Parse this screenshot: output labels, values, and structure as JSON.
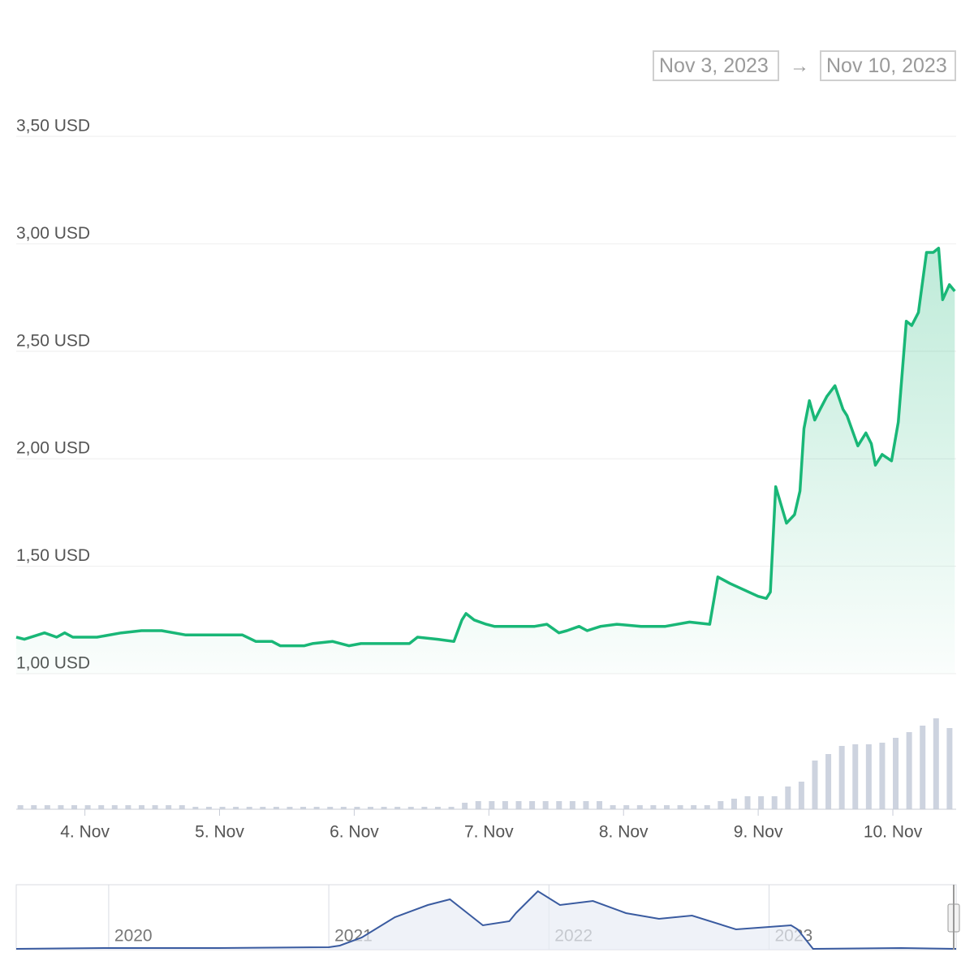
{
  "date_range": {
    "from": "Nov 3, 2023",
    "separator": "→",
    "to": "Nov 10, 2023"
  },
  "chart_data": {
    "type": "line",
    "color": "#19b777",
    "area": true,
    "grid": true,
    "ylim": [
      1.0,
      3.5
    ],
    "yticks": [
      {
        "value": 3.5,
        "label": "3,50 USD"
      },
      {
        "value": 3.0,
        "label": "3,00 USD"
      },
      {
        "value": 2.5,
        "label": "2,50 USD"
      },
      {
        "value": 2.0,
        "label": "2,00 USD"
      },
      {
        "value": 1.5,
        "label": "1,50 USD"
      },
      {
        "value": 1.0,
        "label": "1,00 USD"
      }
    ],
    "xlim": [
      3.49,
      10.47
    ],
    "xticks": [
      {
        "value": 4,
        "label": "4. Nov"
      },
      {
        "value": 5,
        "label": "5. Nov"
      },
      {
        "value": 6,
        "label": "6. Nov"
      },
      {
        "value": 7,
        "label": "7. Nov"
      },
      {
        "value": 8,
        "label": "8. Nov"
      },
      {
        "value": 9,
        "label": "9. Nov"
      },
      {
        "value": 10,
        "label": "10. Nov"
      }
    ],
    "x": [
      3.49,
      3.55,
      3.7,
      3.79,
      3.85,
      3.91,
      4.09,
      4.27,
      4.42,
      4.57,
      4.75,
      4.93,
      5.17,
      5.27,
      5.39,
      5.45,
      5.63,
      5.69,
      5.84,
      5.96,
      6.05,
      6.2,
      6.32,
      6.41,
      6.47,
      6.62,
      6.74,
      6.8,
      6.83,
      6.89,
      6.98,
      7.04,
      7.16,
      7.34,
      7.43,
      7.52,
      7.58,
      7.67,
      7.73,
      7.83,
      7.95,
      8.13,
      8.31,
      8.49,
      8.64,
      8.7,
      8.79,
      9.0,
      9.06,
      9.09,
      9.13,
      9.21,
      9.27,
      9.31,
      9.34,
      9.38,
      9.42,
      9.46,
      9.51,
      9.57,
      9.63,
      9.66,
      9.74,
      9.8,
      9.84,
      9.87,
      9.92,
      9.99,
      10.04,
      10.1,
      10.14,
      10.19,
      10.25,
      10.3,
      10.34,
      10.37,
      10.42,
      10.46
    ],
    "values": [
      1.17,
      1.16,
      1.19,
      1.17,
      1.19,
      1.17,
      1.17,
      1.19,
      1.2,
      1.2,
      1.18,
      1.18,
      1.18,
      1.15,
      1.15,
      1.13,
      1.13,
      1.14,
      1.15,
      1.13,
      1.14,
      1.14,
      1.14,
      1.14,
      1.17,
      1.16,
      1.15,
      1.25,
      1.28,
      1.25,
      1.23,
      1.22,
      1.22,
      1.22,
      1.23,
      1.19,
      1.2,
      1.22,
      1.2,
      1.22,
      1.23,
      1.22,
      1.22,
      1.24,
      1.23,
      1.45,
      1.42,
      1.36,
      1.35,
      1.38,
      1.87,
      1.7,
      1.74,
      1.85,
      2.14,
      2.27,
      2.18,
      2.23,
      2.29,
      2.34,
      2.23,
      2.2,
      2.06,
      2.12,
      2.07,
      1.97,
      2.02,
      1.99,
      2.17,
      2.64,
      2.62,
      2.68,
      2.96,
      2.96,
      2.98,
      2.74,
      2.81,
      2.78
    ],
    "volume": {
      "color": "#cdd3df",
      "ylim": [
        0,
        120
      ],
      "x": [
        3.5,
        3.6,
        3.7,
        3.8,
        3.9,
        4.0,
        4.1,
        4.2,
        4.3,
        4.4,
        4.5,
        4.6,
        4.7,
        4.8,
        4.9,
        5.0,
        5.1,
        5.2,
        5.3,
        5.4,
        5.5,
        5.6,
        5.7,
        5.8,
        5.9,
        6.0,
        6.1,
        6.2,
        6.3,
        6.4,
        6.5,
        6.6,
        6.7,
        6.8,
        6.9,
        7.0,
        7.1,
        7.2,
        7.3,
        7.4,
        7.5,
        7.6,
        7.7,
        7.8,
        7.9,
        8.0,
        8.1,
        8.2,
        8.3,
        8.4,
        8.5,
        8.6,
        8.7,
        8.8,
        8.9,
        9.0,
        9.1,
        9.2,
        9.3,
        9.4,
        9.5,
        9.6,
        9.7,
        9.8,
        9.9,
        10.0,
        10.1,
        10.2,
        10.3,
        10.4
      ],
      "values": [
        5,
        5,
        5,
        5,
        5,
        5,
        5,
        5,
        5,
        5,
        5,
        5,
        5,
        3,
        3,
        3,
        3,
        3,
        3,
        3,
        3,
        3,
        3,
        3,
        3,
        3,
        3,
        3,
        3,
        3,
        3,
        3,
        3,
        8,
        10,
        10,
        10,
        10,
        10,
        10,
        10,
        10,
        10,
        10,
        5,
        5,
        5,
        5,
        5,
        5,
        5,
        5,
        10,
        13,
        16,
        16,
        16,
        28,
        34,
        60,
        68,
        78,
        80,
        80,
        82,
        88,
        95,
        103,
        112,
        100
      ]
    },
    "navigator": {
      "color": "#3a5ba0",
      "xlim": [
        2019.58,
        2023.85
      ],
      "ylim": [
        0,
        80
      ],
      "xticks": [
        2020,
        2021,
        2022,
        2023
      ],
      "x": [
        2019.58,
        2020.0,
        2020.5,
        2021.0,
        2021.05,
        2021.15,
        2021.3,
        2021.45,
        2021.55,
        2021.7,
        2021.82,
        2021.85,
        2021.95,
        2022.05,
        2022.2,
        2022.35,
        2022.5,
        2022.65,
        2022.85,
        2023.1,
        2023.13,
        2023.2,
        2023.6,
        2023.85
      ],
      "values": [
        1,
        2,
        2,
        3,
        5,
        15,
        40,
        55,
        62,
        30,
        35,
        45,
        72,
        55,
        60,
        45,
        38,
        42,
        25,
        30,
        25,
        1,
        2,
        1
      ]
    }
  }
}
